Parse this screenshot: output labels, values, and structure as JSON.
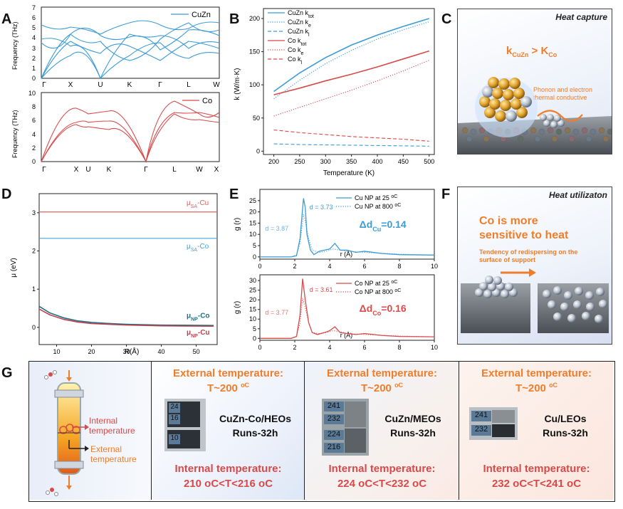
{
  "panel_labels": {
    "A": "A",
    "B": "B",
    "C": "C",
    "D": "D",
    "E": "E",
    "F": "F",
    "G": "G"
  },
  "colors": {
    "cuzn": "#3b9bd6",
    "co": "#d84a4a",
    "sa_cu": "#e06060",
    "sa_co": "#4aa0d8",
    "np_co": "#1f6f80",
    "np_cu": "#c04050",
    "orange": "#f07d2a"
  },
  "panelA": {
    "top": {
      "ylabel": "Frequency (THz)",
      "yticks": [
        "0",
        "1",
        "2",
        "3",
        "4",
        "5",
        "6",
        "7"
      ],
      "xticks": [
        "Γ",
        "X",
        "U",
        "K",
        "Γ",
        "L",
        "W"
      ],
      "legend": "CuZn"
    },
    "bottom": {
      "ylabel": "Frequency (THz)",
      "yticks": [
        "0",
        "2",
        "4",
        "6",
        "8",
        "10"
      ],
      "xticks": [
        "Γ",
        "X",
        "U",
        "K",
        "Γ",
        "L",
        "W",
        "X"
      ],
      "legend": "Co"
    }
  },
  "panelC": {
    "title": "Heat capture",
    "formula_left": "k",
    "formula_left_sub": "CuZn",
    "formula_mid": " > ",
    "formula_right": "K",
    "formula_right_sub": "Co",
    "annotation_line1": "Phonon and electron",
    "annotation_line2": "thermal conductive"
  },
  "panelF": {
    "title": "Heat utilizaton",
    "line1": "Co is more",
    "line2": "sensitive to heat",
    "sub1": "Tendency of redispersing on the",
    "sub2": "surface of support"
  },
  "panelG": {
    "reactor_internal_1": "Internal",
    "reactor_internal_2": "temperature",
    "reactor_external_1": "External",
    "reactor_external_2": "temperature",
    "columns": [
      {
        "ext_title": "External  temperature:",
        "ext_value": "T~200 ",
        "ext_unit": "oC",
        "catalyst": "CuZn-Co/HEOs",
        "runs": "Runs-32h",
        "int_title": "Internal temperature:",
        "int_value": "210 oC<T<216 oC",
        "photo_labels": [
          "24",
          "16",
          "10"
        ]
      },
      {
        "ext_title": "External  temperature:",
        "ext_value": "T~200 ",
        "ext_unit": "oC",
        "catalyst": "CuZn/MEOs",
        "runs": "Runs-32h",
        "int_title": "Internal temperature:",
        "int_value": "224 oC<T<232 oC",
        "photo_labels": [
          "241",
          "232",
          "224",
          "216"
        ]
      },
      {
        "ext_title": "External  temperature:",
        "ext_value": "T~200 ",
        "ext_unit": "oC",
        "catalyst": "Cu/LEOs",
        "runs": "Runs-32h",
        "int_title": "Internal temperature:",
        "int_value": "232 oC<T<241 oC",
        "photo_labels": [
          "241",
          "232"
        ]
      }
    ]
  },
  "chart_data": [
    {
      "id": "B",
      "type": "line",
      "xlabel": "Temperature (K)",
      "ylabel": "k (W/m·K)",
      "xlim": [
        180,
        510
      ],
      "ylim": [
        -5,
        215
      ],
      "xticks": [
        200,
        250,
        300,
        350,
        400,
        450,
        500
      ],
      "yticks": [
        0,
        50,
        100,
        150,
        200
      ],
      "x": [
        200,
        250,
        300,
        350,
        400,
        450,
        500
      ],
      "series": [
        {
          "name": "CuZn k",
          "sub": "tot",
          "style": "solid",
          "color": "#3b9bd6",
          "values": [
            90,
            118,
            141,
            160,
            175,
            188,
            200
          ]
        },
        {
          "name": "CuZn k",
          "sub": "e",
          "style": "dotted",
          "color": "#3b9bd6",
          "values": [
            79,
            107,
            132,
            152,
            169,
            183,
            195
          ]
        },
        {
          "name": "CuZn k",
          "sub": "l",
          "style": "dashed",
          "color": "#3b9bd6",
          "values": [
            11,
            10,
            9.5,
            9,
            8.5,
            8,
            7.5
          ]
        },
        {
          "name": "Co k",
          "sub": "tot",
          "style": "solid",
          "color": "#d84a4a",
          "values": [
            85,
            95,
            106,
            116,
            127,
            139,
            151
          ]
        },
        {
          "name": "Co k",
          "sub": "e",
          "style": "dotted",
          "color": "#d84a4a",
          "values": [
            53,
            66,
            79,
            92,
            106,
            121,
            137
          ]
        },
        {
          "name": "Co k",
          "sub": "l",
          "style": "dashed",
          "color": "#d84a4a",
          "values": [
            32,
            28,
            25,
            22,
            20,
            18,
            15
          ]
        }
      ]
    },
    {
      "id": "D",
      "type": "line",
      "xlabel": "R(Å)",
      "ylabel": "μ (eV)",
      "xlim": [
        5,
        56
      ],
      "ylim": [
        -0.45,
        3.5
      ],
      "xticks": [
        10,
        20,
        30,
        40,
        50
      ],
      "yticks": [
        0,
        1,
        2,
        3
      ],
      "series": [
        {
          "name": "μ",
          "sub": "SA",
          "suffix": "-Cu",
          "color": "#e06060",
          "constant": 3.02
        },
        {
          "name": "μ",
          "sub": "SA",
          "suffix": "-Co",
          "color": "#4aa0d8",
          "constant": 2.33
        },
        {
          "name": "μ",
          "sub": "NP",
          "suffix": "-Co",
          "color": "#1f6f80",
          "x": [
            5,
            8,
            12,
            16,
            20,
            25,
            30,
            40,
            55
          ],
          "values": [
            0.55,
            0.38,
            0.25,
            0.17,
            0.13,
            0.1,
            0.08,
            0.06,
            0.05
          ]
        },
        {
          "name": "μ",
          "sub": "NP",
          "suffix": "-Cu",
          "color": "#c04050",
          "x": [
            5,
            8,
            12,
            16,
            20,
            25,
            30,
            40,
            55
          ],
          "values": [
            0.48,
            0.33,
            0.21,
            0.14,
            0.1,
            0.08,
            0.06,
            0.04,
            0.03
          ]
        }
      ]
    },
    {
      "id": "E-top",
      "type": "line",
      "xlabel": "r (Å)",
      "ylabel": "g (r)",
      "xlim": [
        0,
        10
      ],
      "ylim": [
        -1,
        30
      ],
      "xticks": [
        0,
        2,
        4,
        6,
        8,
        10
      ],
      "yticks": [
        0,
        5,
        10,
        15,
        20,
        25
      ],
      "annotations": {
        "d1": "d = 3.73",
        "d2": "d = 3.87",
        "delta": "Δd",
        "delta_sub": "Cu",
        "delta_val": "=0.14"
      },
      "series": [
        {
          "name": "Cu NP at 25 ",
          "unit": "oC",
          "style": "solid",
          "color": "#3b9bd6",
          "x": [
            0,
            1.8,
            2.1,
            2.3,
            2.5,
            2.6,
            2.7,
            2.9,
            3.1,
            3.4,
            3.7,
            4.0,
            4.3,
            4.6,
            5.0,
            5.5,
            6.0,
            7,
            8,
            10
          ],
          "values": [
            0,
            0,
            0.5,
            8,
            26,
            22,
            10,
            3,
            1,
            2.5,
            3,
            3.5,
            6,
            3,
            3,
            2,
            2.5,
            1.5,
            1,
            0.8
          ]
        },
        {
          "name": "Cu NP at 800 ",
          "unit": "oC",
          "style": "dotted",
          "color": "#3b9bd6",
          "x": [
            0,
            1.8,
            2.1,
            2.3,
            2.5,
            2.6,
            2.8,
            3.0,
            3.4,
            3.8,
            4.2,
            4.6,
            5.0,
            6.0,
            8,
            10
          ],
          "values": [
            0,
            0,
            1,
            6,
            19,
            16,
            8,
            3,
            2,
            2.5,
            3.5,
            3,
            2.5,
            2,
            1.2,
            0.8
          ]
        }
      ]
    },
    {
      "id": "E-bottom",
      "type": "line",
      "xlabel": "r (Å)",
      "ylabel": "g (r)",
      "xlim": [
        0,
        10
      ],
      "ylim": [
        -1,
        33
      ],
      "xticks": [
        0,
        2,
        4,
        6,
        8,
        10
      ],
      "yticks": [
        0,
        5,
        10,
        15,
        20,
        25,
        30
      ],
      "annotations": {
        "d1": "d = 3.61",
        "d2": "d = 3.77",
        "delta": "Δd",
        "delta_sub": "Co",
        "delta_val": "=0.16"
      },
      "series": [
        {
          "name": "Co NP at 25 ",
          "unit": "oC",
          "style": "solid",
          "color": "#d84a4a",
          "x": [
            0,
            1.8,
            2.1,
            2.3,
            2.45,
            2.6,
            2.8,
            3.0,
            3.3,
            3.7,
            4.0,
            4.3,
            4.6,
            5.0,
            5.5,
            6.0,
            7,
            8,
            10
          ],
          "values": [
            0,
            0,
            1,
            12,
            31,
            20,
            8,
            3,
            2,
            3,
            4,
            6,
            3,
            2.5,
            2,
            2.5,
            1.5,
            1,
            0.8
          ]
        },
        {
          "name": "Co NP at 800 ",
          "unit": "oC",
          "style": "dotted",
          "color": "#d84a4a",
          "x": [
            0,
            1.8,
            2.1,
            2.3,
            2.45,
            2.6,
            2.8,
            3.0,
            3.4,
            3.8,
            4.2,
            4.6,
            5.0,
            6.0,
            8,
            10
          ],
          "values": [
            0,
            0,
            1,
            8,
            21,
            16,
            8,
            3,
            2.5,
            3,
            4,
            3.5,
            2.5,
            2,
            1.2,
            0.8
          ]
        }
      ]
    }
  ]
}
